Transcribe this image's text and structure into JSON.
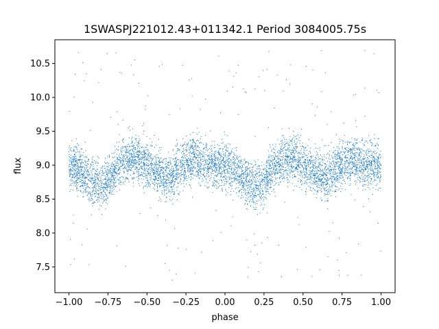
{
  "chart_data": {
    "type": "scatter",
    "title": "1SWASPJ221012.43+011342.1 Period 3084005.75s",
    "xlabel": "phase",
    "ylabel": "flux",
    "xlim": [
      -1.09,
      1.09
    ],
    "ylim": [
      7.12,
      10.85
    ],
    "xticks": [
      -1.0,
      -0.75,
      -0.5,
      -0.25,
      0.0,
      0.25,
      0.5,
      0.75,
      1.0
    ],
    "xtick_labels": [
      "−1.00",
      "−0.75",
      "−0.50",
      "−0.25",
      "0.00",
      "0.25",
      "0.50",
      "0.75",
      "1.00"
    ],
    "yticks": [
      7.5,
      8.0,
      8.5,
      9.0,
      9.5,
      10.0,
      10.5
    ],
    "ytick_labels": [
      "7.5",
      "8.0",
      "8.5",
      "9.0",
      "9.5",
      "10.0",
      "10.5"
    ],
    "grid": false,
    "marker_color": "#1f77b4",
    "point_count_estimate": 20000,
    "light_curve_profile": {
      "phase": [
        0.0,
        0.05,
        0.1,
        0.15,
        0.2,
        0.25,
        0.3,
        0.35,
        0.4,
        0.45,
        0.5,
        0.55,
        0.6,
        0.65,
        0.7,
        0.75,
        0.8,
        0.85,
        0.9,
        0.95,
        1.0
      ],
      "median_flux": [
        9.0,
        8.95,
        8.85,
        8.75,
        8.7,
        8.75,
        8.95,
        9.05,
        9.1,
        9.1,
        9.0,
        8.95,
        8.85,
        8.8,
        8.95,
        9.05,
        9.1,
        9.05,
        9.0,
        9.0,
        9.0
      ],
      "scatter_halfwidth": 0.3,
      "outlier_range": [
        7.3,
        10.7
      ]
    }
  }
}
